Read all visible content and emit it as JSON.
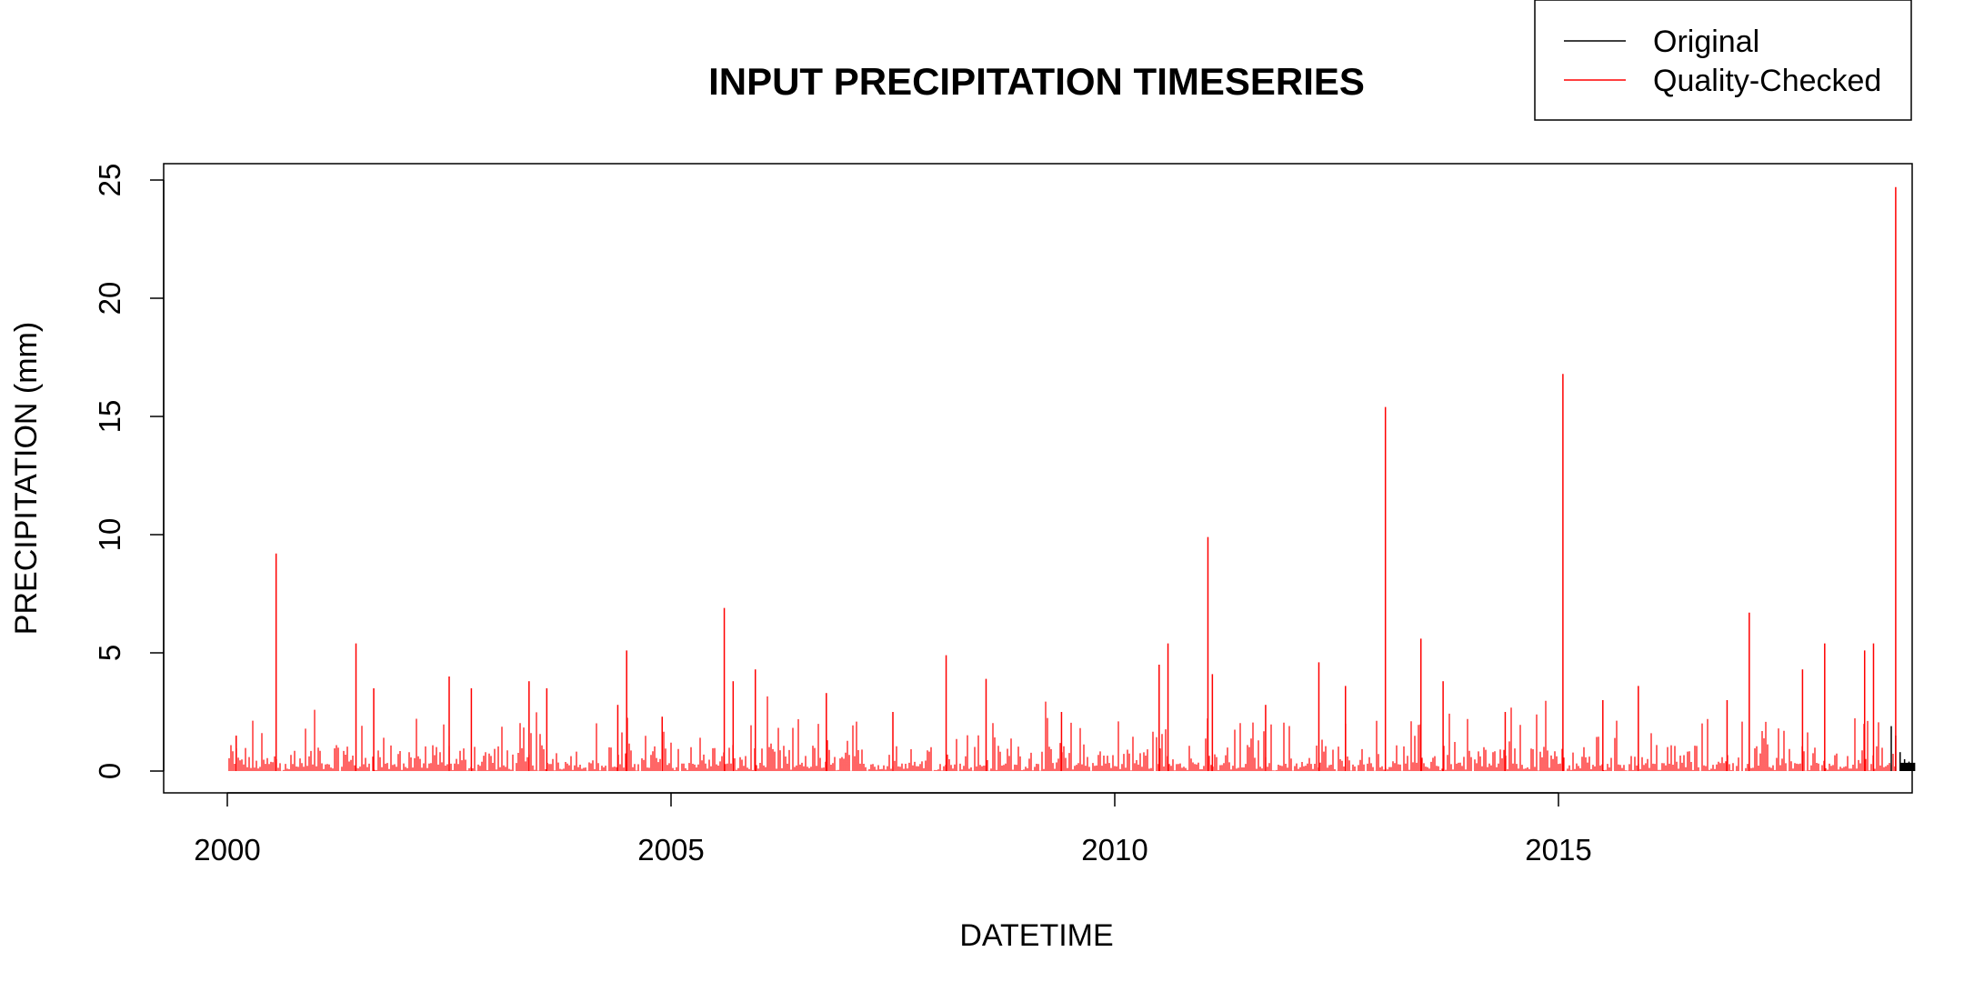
{
  "chart_data": {
    "type": "line",
    "title": "INPUT PRECIPITATION TIMESERIES",
    "xlabel": "DATETIME",
    "ylabel": "PRECIPITATION (mm)",
    "xlim": [
      2000,
      2019.25
    ],
    "ylim": [
      0,
      25
    ],
    "x_ticks": [
      2000,
      2005,
      2010,
      2015
    ],
    "y_ticks": [
      0,
      5,
      10,
      15,
      20,
      25
    ],
    "grid": false,
    "legend_position": "top-right",
    "series": [
      {
        "name": "Original",
        "color": "#000000",
        "x": [
          2018.75,
          2018.8,
          2018.85,
          2018.9,
          2018.95,
          2019.0
        ],
        "values": [
          1.9,
          1.5,
          0.8,
          0.5,
          0.4,
          0.3
        ]
      },
      {
        "name": "Quality-Checked",
        "color": "#ff0000",
        "x": [
          2000.1,
          2000.55,
          2001.45,
          2001.65,
          2002.5,
          2002.75,
          2003.4,
          2003.6,
          2004.4,
          2004.5,
          2004.9,
          2005.6,
          2005.7,
          2005.95,
          2006.75,
          2007.5,
          2008.1,
          2008.55,
          2009.4,
          2010.5,
          2010.6,
          2011.05,
          2011.1,
          2011.7,
          2012.3,
          2012.6,
          2013.05,
          2013.45,
          2013.7,
          2014.4,
          2015.05,
          2015.5,
          2015.9,
          2016.9,
          2017.15,
          2017.75,
          2018.0,
          2018.45,
          2018.55,
          2018.8
        ],
        "values": [
          1.5,
          9.2,
          5.4,
          3.5,
          4.0,
          3.5,
          3.8,
          3.5,
          2.8,
          5.1,
          2.3,
          6.9,
          3.8,
          4.3,
          3.3,
          2.5,
          4.9,
          3.9,
          2.5,
          4.5,
          5.4,
          9.9,
          4.1,
          2.8,
          4.6,
          3.6,
          15.4,
          5.6,
          3.8,
          2.5,
          16.8,
          3.0,
          3.6,
          3.0,
          6.7,
          4.3,
          5.4,
          5.1,
          5.4,
          24.7
        ]
      }
    ]
  }
}
